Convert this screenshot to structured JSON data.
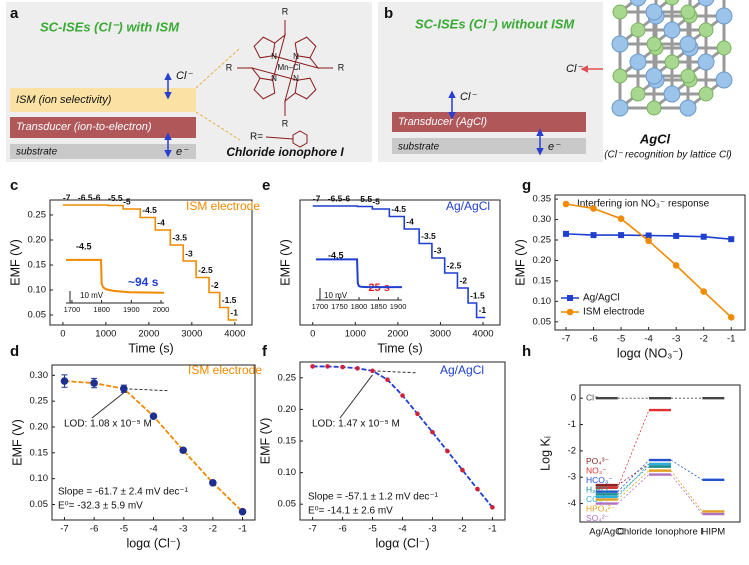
{
  "panel_labels": [
    "a",
    "b",
    "c",
    "d",
    "e",
    "f",
    "g",
    "h"
  ],
  "diagram_a": {
    "title": "SC-ISEs (Cl⁻) with ISM",
    "ion": "Cl⁻",
    "layers": [
      "ISM (ion selectivity)",
      "Transducer (ion-to-electron)",
      "substrate"
    ],
    "electron": "e⁻",
    "atoms": [
      "R",
      "R",
      "R",
      "R",
      "N",
      "N",
      "N",
      "N",
      "Mn–Cl"
    ],
    "substituent": "R=",
    "caption": "Chloride ionophore I"
  },
  "diagram_b": {
    "title": "SC-ISEs (Cl⁻) without ISM",
    "ions": [
      "Cl⁻",
      "Cl⁻"
    ],
    "layers": [
      "Transducer (AgCl)",
      "substrate"
    ],
    "electron": "e⁻",
    "crystal": "AgCl",
    "caption": "(Cl⁻ recognition by lattice Cl)"
  },
  "chart_data": [
    {
      "type": "line",
      "xlabel": "Time (s)",
      "ylabel": "EMF (V)",
      "annotations": [
        "ISM electrode"
      ],
      "xlim": [
        -300,
        4400
      ],
      "ylim": [
        0.03,
        0.28
      ],
      "xticks": [
        0,
        1000,
        2000,
        3000,
        4000
      ],
      "yticks": [
        0.05,
        {
          "value": 0.1,
          "label": "0.10"
        },
        0.15,
        {
          "value": 0.2,
          "label": "0.20"
        },
        0.25
      ],
      "step_labels": [
        "-7",
        "-6.5",
        "-6",
        "-5.5",
        "-5",
        "-4.5",
        "-4",
        "-3.5",
        "-3",
        "-2.5",
        "-2",
        "-1.5",
        "-1"
      ],
      "series": [
        {
          "color": "#f08a00",
          "x": [
            0,
            350,
            350,
            700,
            700,
            1050,
            1050,
            1400,
            1400,
            1800,
            1800,
            2150,
            2150,
            2500,
            2500,
            2800,
            2800,
            3100,
            3100,
            3400,
            3400,
            3650,
            3650,
            3850,
            3850,
            4050
          ],
          "values": [
            0.27,
            0.27,
            0.27,
            0.27,
            0.27,
            0.27,
            0.269,
            0.269,
            0.262,
            0.262,
            0.245,
            0.245,
            0.22,
            0.22,
            0.19,
            0.19,
            0.158,
            0.158,
            0.125,
            0.125,
            0.095,
            0.095,
            0.065,
            0.065,
            0.04,
            0.04
          ]
        }
      ]
    },
    {
      "type": "line",
      "annotations": [
        "-4.5",
        "~94 s",
        "10 mV"
      ],
      "xlim": [
        1680,
        2010
      ],
      "ylim": [
        0.24,
        0.266
      ],
      "xticks": [
        1700,
        1800,
        1900,
        2000
      ],
      "series": [
        {
          "color": "#f08a00",
          "x": [
            1680,
            1798,
            1800,
            1805,
            1815,
            1840,
            1894,
            2010
          ],
          "values": [
            0.262,
            0.262,
            0.25,
            0.248,
            0.247,
            0.2462,
            0.2455,
            0.2452
          ]
        }
      ]
    },
    {
      "type": "line",
      "xlabel": "Time (s)",
      "ylabel": "EMF (V)",
      "annotations": [
        "Ag/AgCl"
      ],
      "xlim": [
        -300,
        4400
      ],
      "ylim": [
        0.03,
        0.28
      ],
      "xticks": [
        0,
        1000,
        2000,
        3000,
        4000
      ],
      "step_labels": [
        "-7",
        "-6.5",
        "-6",
        "-5.5",
        "-5",
        "-4.5",
        "-4",
        "-3.5",
        "-3",
        "-2.5",
        "-2",
        "-1.5",
        "-1"
      ],
      "series": [
        {
          "color": "#1f3fd0",
          "x": [
            0,
            350,
            350,
            700,
            700,
            1050,
            1050,
            1400,
            1400,
            1800,
            1800,
            2150,
            2150,
            2500,
            2500,
            2800,
            2800,
            3100,
            3100,
            3400,
            3400,
            3650,
            3650,
            3850,
            3850,
            4050
          ],
          "values": [
            0.268,
            0.268,
            0.268,
            0.268,
            0.268,
            0.268,
            0.267,
            0.267,
            0.262,
            0.262,
            0.247,
            0.247,
            0.222,
            0.222,
            0.193,
            0.193,
            0.164,
            0.164,
            0.134,
            0.134,
            0.104,
            0.104,
            0.074,
            0.074,
            0.045,
            0.045
          ]
        }
      ]
    },
    {
      "type": "line",
      "annotations": [
        "-4.5",
        "~25 s",
        "10 mV"
      ],
      "xlim": [
        1690,
        1910
      ],
      "ylim": [
        0.24,
        0.266
      ],
      "xticks": [
        1700,
        1750,
        1800,
        1850,
        1900
      ],
      "series": [
        {
          "color": "#1f3fd0",
          "x": [
            1690,
            1795,
            1797,
            1800,
            1805,
            1822,
            1910
          ],
          "values": [
            0.262,
            0.262,
            0.249,
            0.2475,
            0.2472,
            0.247,
            0.247
          ]
        }
      ]
    },
    {
      "type": "scatter",
      "xlabel": "logα (Cl⁻)",
      "ylabel": "EMF (V)",
      "annotations": [
        "ISM electrode",
        "LOD: 1.08 x 10⁻⁵ M",
        "Slope = -61.7 ± 2.4 mV dec⁻¹",
        "E⁰= -32.3 ± 5.9 mV"
      ],
      "xlim": [
        -7.42,
        -0.58
      ],
      "ylim": [
        0.02,
        0.32
      ],
      "xticks": [
        -7,
        -6,
        -5,
        -4,
        -3,
        -2,
        -1
      ],
      "yticks": [
        0.05,
        {
          "value": 0.1,
          "label": "0.10"
        },
        0.15,
        {
          "value": 0.2,
          "label": "0.20"
        },
        0.25,
        {
          "value": 0.3,
          "label": "0.30"
        }
      ],
      "color": "#1f2f8f",
      "fit_color": "#f08a00",
      "x": [
        -7,
        -6,
        -5,
        -4,
        -3,
        -2,
        -1
      ],
      "values": [
        0.289,
        0.285,
        0.274,
        0.221,
        0.155,
        0.092,
        0.036
      ],
      "errors": [
        0.012,
        0.009,
        0.007,
        0.004,
        0.004,
        0.004,
        0.003
      ]
    },
    {
      "type": "scatter",
      "xlabel": "logα (Cl⁻)",
      "ylabel": "EMF (V)",
      "annotations": [
        "Ag/AgCl",
        "LOD: 1.47 x 10⁻⁵ M",
        "Slope = -57.1 ± 1.2 mV dec⁻¹",
        "E⁰= -14.1 ± 2.6 mV"
      ],
      "xlim": [
        -7.42,
        -0.58
      ],
      "ylim": [
        0.025,
        0.275
      ],
      "xticks": [
        -7,
        -6,
        -5,
        -4,
        -3,
        -2,
        -1
      ],
      "yticks": [
        0.05,
        {
          "value": 0.1,
          "label": "0.10"
        },
        0.15,
        {
          "value": 0.2,
          "label": "0.20"
        },
        0.25
      ],
      "color": "#d0203a",
      "fit_color": "#1f3fd0",
      "x": [
        -7,
        -6.5,
        -6,
        -5.5,
        -5,
        -4.5,
        -4,
        -3.5,
        -3,
        -2.5,
        -2,
        -1.5,
        -1
      ],
      "values": [
        0.268,
        0.268,
        0.267,
        0.265,
        0.261,
        0.247,
        0.222,
        0.193,
        0.164,
        0.134,
        0.104,
        0.074,
        0.045
      ]
    },
    {
      "type": "line",
      "title": "Interfering ion NO₃⁻ response",
      "xlabel": "logα (NO₃⁻)",
      "ylabel": "EMF (V)",
      "legend": "lower left",
      "xlim": [
        -7.4,
        -0.5
      ],
      "ylim": [
        0.03,
        0.36
      ],
      "xticks": [
        -7,
        -6,
        -5,
        -4,
        -3,
        -2,
        -1
      ],
      "yticks": [
        0.05,
        {
          "value": 0.1,
          "label": "0.10"
        },
        0.15,
        {
          "value": 0.2,
          "label": "0.20"
        },
        0.25,
        {
          "value": 0.3,
          "label": "0.30"
        },
        0.35
      ],
      "series": [
        {
          "name": "Ag/AgCl",
          "color": "#1f3fd0",
          "marker": "square",
          "x": [
            -7,
            -6,
            -5,
            -4,
            -3,
            -2,
            -1
          ],
          "values": [
            0.265,
            0.262,
            0.262,
            0.261,
            0.26,
            0.258,
            0.252
          ]
        },
        {
          "name": "ISM electrode",
          "color": "#f08a00",
          "marker": "circle",
          "x": [
            -7,
            -6,
            -5,
            -4,
            -3,
            -2,
            -1
          ],
          "values": [
            0.338,
            0.327,
            0.302,
            0.248,
            0.188,
            0.124,
            0.061
          ]
        }
      ]
    },
    {
      "type": "dot",
      "ylabel": "Log Kᵢ",
      "categories": [
        "Ag/AgCl",
        "Chloride Ionophore I",
        "HIPM"
      ],
      "ylim": [
        -4.7,
        0.5
      ],
      "yticks": [
        0,
        -1,
        -2,
        -3,
        -4
      ],
      "series": [
        {
          "name": "Cl⁻",
          "color": "#444444",
          "values": [
            0,
            0,
            0
          ]
        },
        {
          "name": "PO₄³⁻",
          "color": "#8b2323",
          "values": [
            -3.3,
            -2.5,
            null
          ]
        },
        {
          "name": "NO₃⁻",
          "color": "#e03030",
          "values": [
            -3.4,
            -0.45,
            null
          ]
        },
        {
          "name": "HCO₃⁻",
          "color": "#2050d0",
          "values": [
            -3.55,
            -2.35,
            -3.1
          ]
        },
        {
          "name": "H₂PO₄⁻",
          "color": "#1a8f8f",
          "values": [
            -3.65,
            -2.6,
            null
          ]
        },
        {
          "name": "CO₃²⁻",
          "color": "#2ab0e0",
          "values": [
            -3.75,
            -2.5,
            null
          ]
        },
        {
          "name": "HPO₄²⁻",
          "color": "#e0a020",
          "values": [
            -3.85,
            -2.75,
            -4.3
          ]
        },
        {
          "name": "SO₄²⁻",
          "color": "#b070c0",
          "values": [
            -4.0,
            -2.9,
            -4.4
          ]
        }
      ]
    }
  ]
}
